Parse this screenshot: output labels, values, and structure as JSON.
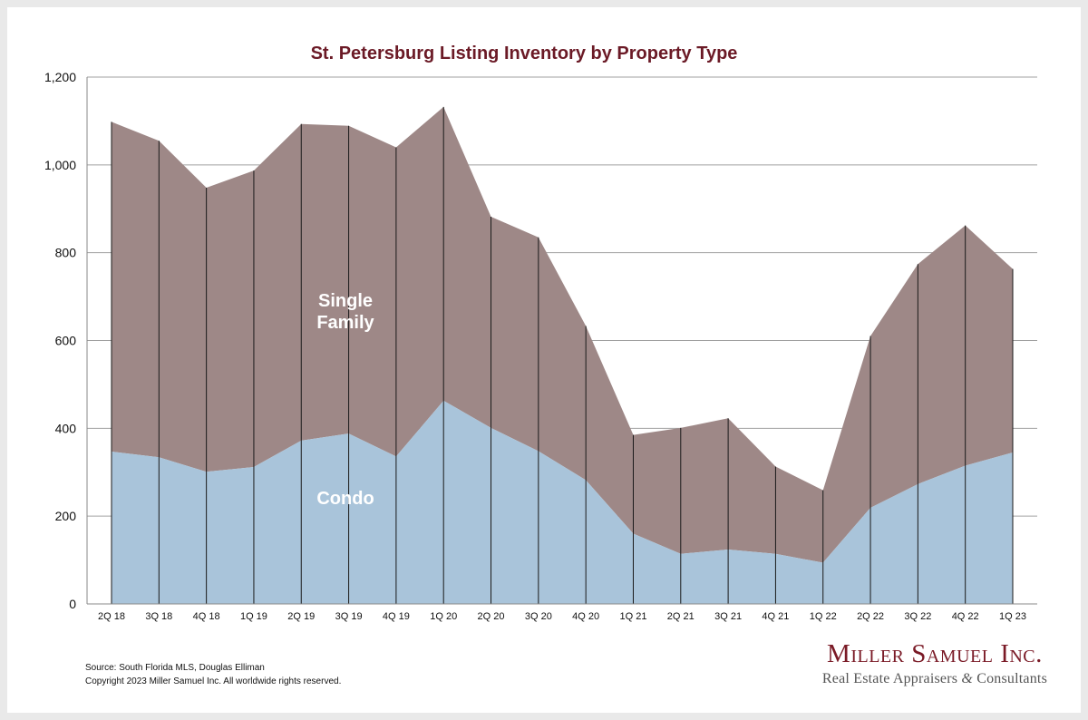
{
  "footer": {
    "source": "Source: South Florida MLS, Douglas Elliman",
    "copyright": "Copyright 2023 Miller Samuel Inc.  All worldwide rights reserved."
  },
  "brand": {
    "name": "Miller Samuel Inc.",
    "tagline_a": "Real Estate Appraisers",
    "tagline_amp": "&",
    "tagline_b": "Consultants",
    "color": "#7a1a26"
  },
  "chart_data": {
    "type": "area",
    "stacked": true,
    "title": "St. Petersburg Listing Inventory by Property Type",
    "xlabel": "",
    "ylabel": "",
    "ylim": [
      0,
      1200
    ],
    "yticks": [
      0,
      200,
      400,
      600,
      800,
      1000,
      1200
    ],
    "ytick_labels": [
      "0",
      "200",
      "400",
      "600",
      "800",
      "1,000",
      "1,200"
    ],
    "grid": true,
    "categories": [
      "2Q 18",
      "3Q 18",
      "4Q 18",
      "1Q 19",
      "2Q 19",
      "3Q 19",
      "4Q 19",
      "1Q 20",
      "2Q 20",
      "3Q 20",
      "4Q 20",
      "1Q 21",
      "2Q 21",
      "3Q 21",
      "4Q 21",
      "1Q 22",
      "2Q 22",
      "3Q 22",
      "4Q 22",
      "1Q 23"
    ],
    "series": [
      {
        "name": "Condo",
        "color": "#a9c4da",
        "values": [
          347,
          334,
          301,
          312,
          372,
          388,
          336,
          463,
          401,
          348,
          282,
          160,
          114,
          124,
          114,
          94,
          219,
          273,
          315,
          345
        ]
      },
      {
        "name": "Single Family",
        "color": "#9e8887",
        "values": [
          751,
          721,
          647,
          675,
          721,
          701,
          704,
          669,
          481,
          487,
          351,
          225,
          287,
          299,
          199,
          165,
          391,
          501,
          547,
          418
        ]
      }
    ],
    "area_labels": [
      {
        "lines": [
          "Single",
          "Family"
        ]
      },
      {
        "lines": [
          "Condo"
        ]
      }
    ]
  }
}
